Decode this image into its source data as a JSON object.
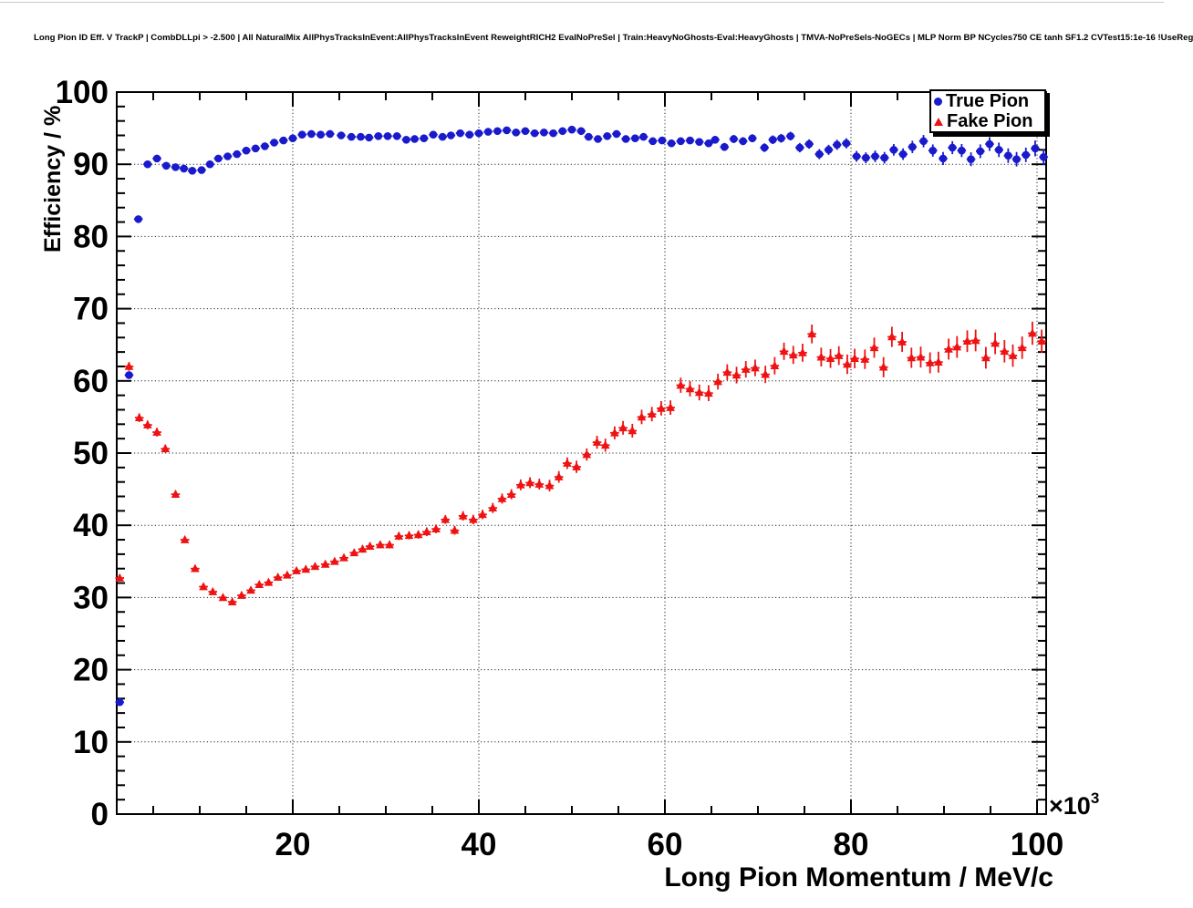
{
  "page": {
    "background": "#ffffff"
  },
  "header": {
    "title": "Long Pion ID Eff. V TrackP | CombDLLpi > -2.500 | All NaturalMix AllPhysTracksInEvent:AllPhysTracksInEvent ReweightRICH2 EvalNoPreSel | Train:HeavyNoGhosts-Eval:HeavyGhosts | TMVA-NoPreSels-NoGECs | MLP Norm BP NCycles750 CE tanh SF1.2 CVTest15:1e-16 !UseReg"
  },
  "chart_data": {
    "type": "scatter",
    "title": "Long Pion ID Eff. V TrackP | CombDLLpi > -2.500 | All NaturalMix AllPhysTracksInEvent:AllPhysTracksInEvent ReweightRICH2 EvalNoPreSel | Train:HeavyNoGhosts-Eval:HeavyGhosts | TMVA-NoPreSels-NoGECs | MLP Norm BP NCycles750 CE tanh SF1.2 CVTest15:1e-16 !UseReg",
    "xlabel": "Long Pion Momentum / MeV/c",
    "ylabel": "Efficiency / %",
    "x_unit_multiplier": {
      "base": "×10",
      "exponent": "3"
    },
    "xlim": [
      1.08,
      100.98
    ],
    "ylim": [
      0,
      100
    ],
    "x_major_ticks": [
      20,
      40,
      60,
      80,
      100
    ],
    "x_minor_tick_step": 5,
    "y_major_ticks": [
      0,
      10,
      20,
      30,
      40,
      50,
      60,
      70,
      80,
      90,
      100
    ],
    "y_minor_tick_step": 2,
    "grid": {
      "style": "dotted",
      "x_lines": [
        20,
        40,
        60,
        80,
        100
      ],
      "y_lines": [
        10,
        20,
        30,
        40,
        50,
        60,
        70,
        80,
        90
      ]
    },
    "x_error_half_width": 0.47,
    "legend": {
      "position": "top-right",
      "items": [
        {
          "label": "True Pion",
          "marker": "circle",
          "color": "#1a1acd"
        },
        {
          "label": "Fake Pion",
          "marker": "triangle",
          "color": "#ef1212"
        }
      ]
    },
    "series": [
      {
        "name": "True Pion",
        "marker": "circle",
        "color": "#1a1acd",
        "points": [
          [
            1.4,
            15.5,
            0.4
          ],
          [
            2.4,
            60.8,
            0.5
          ],
          [
            3.4,
            82.4,
            0.4
          ],
          [
            4.4,
            90.0,
            0.35
          ],
          [
            5.4,
            90.8,
            0.3
          ],
          [
            6.4,
            89.8,
            0.3
          ],
          [
            7.4,
            89.6,
            0.3
          ],
          [
            8.3,
            89.4,
            0.3
          ],
          [
            9.2,
            89.1,
            0.3
          ],
          [
            10.2,
            89.2,
            0.3
          ],
          [
            11.1,
            90.0,
            0.3
          ],
          [
            12.0,
            90.8,
            0.3
          ],
          [
            13.0,
            91.1,
            0.3
          ],
          [
            14.0,
            91.4,
            0.3
          ],
          [
            15.0,
            91.9,
            0.3
          ],
          [
            16.0,
            92.2,
            0.3
          ],
          [
            17.0,
            92.5,
            0.3
          ],
          [
            18.0,
            93.0,
            0.3
          ],
          [
            19.0,
            93.3,
            0.3
          ],
          [
            20.0,
            93.6,
            0.3
          ],
          [
            21.0,
            94.1,
            0.3
          ],
          [
            22.0,
            94.2,
            0.3
          ],
          [
            23.0,
            94.1,
            0.3
          ],
          [
            24.0,
            94.2,
            0.3
          ],
          [
            25.2,
            94.0,
            0.3
          ],
          [
            26.3,
            93.8,
            0.3
          ],
          [
            27.3,
            93.8,
            0.3
          ],
          [
            28.2,
            93.7,
            0.3
          ],
          [
            29.2,
            93.9,
            0.3
          ],
          [
            30.2,
            93.9,
            0.3
          ],
          [
            31.2,
            93.9,
            0.3
          ],
          [
            32.2,
            93.4,
            0.3
          ],
          [
            33.1,
            93.5,
            0.3
          ],
          [
            34.1,
            93.6,
            0.3
          ],
          [
            35.1,
            94.1,
            0.3
          ],
          [
            36.1,
            93.8,
            0.3
          ],
          [
            37.0,
            94.0,
            0.3
          ],
          [
            38.0,
            94.3,
            0.3
          ],
          [
            39.0,
            94.1,
            0.3
          ],
          [
            40.0,
            94.3,
            0.3
          ],
          [
            41.0,
            94.5,
            0.3
          ],
          [
            42.0,
            94.6,
            0.3
          ],
          [
            43.0,
            94.7,
            0.3
          ],
          [
            44.0,
            94.4,
            0.3
          ],
          [
            45.0,
            94.6,
            0.35
          ],
          [
            46.0,
            94.3,
            0.35
          ],
          [
            47.0,
            94.4,
            0.35
          ],
          [
            48.0,
            94.3,
            0.35
          ],
          [
            49.0,
            94.6,
            0.35
          ],
          [
            50.0,
            94.8,
            0.35
          ],
          [
            51.0,
            94.6,
            0.35
          ],
          [
            51.8,
            93.8,
            0.4
          ],
          [
            52.8,
            93.5,
            0.4
          ],
          [
            53.8,
            93.9,
            0.4
          ],
          [
            54.8,
            94.2,
            0.4
          ],
          [
            55.8,
            93.5,
            0.4
          ],
          [
            56.8,
            93.6,
            0.4
          ],
          [
            57.7,
            93.8,
            0.4
          ],
          [
            58.7,
            93.2,
            0.45
          ],
          [
            59.7,
            93.3,
            0.45
          ],
          [
            60.7,
            92.9,
            0.45
          ],
          [
            61.7,
            93.2,
            0.45
          ],
          [
            62.7,
            93.3,
            0.5
          ],
          [
            63.7,
            93.1,
            0.5
          ],
          [
            64.7,
            92.9,
            0.5
          ],
          [
            65.4,
            93.4,
            0.5
          ],
          [
            66.4,
            92.4,
            0.55
          ],
          [
            67.4,
            93.5,
            0.55
          ],
          [
            68.4,
            93.2,
            0.55
          ],
          [
            69.4,
            93.6,
            0.55
          ],
          [
            70.7,
            92.3,
            0.6
          ],
          [
            71.6,
            93.4,
            0.6
          ],
          [
            72.5,
            93.6,
            0.6
          ],
          [
            73.5,
            93.9,
            0.6
          ],
          [
            74.5,
            92.3,
            0.65
          ],
          [
            75.5,
            92.8,
            0.65
          ],
          [
            76.6,
            91.4,
            0.7
          ],
          [
            77.6,
            92.0,
            0.7
          ],
          [
            78.5,
            92.7,
            0.7
          ],
          [
            79.5,
            92.9,
            0.7
          ],
          [
            80.6,
            91.1,
            0.75
          ],
          [
            81.6,
            90.9,
            0.75
          ],
          [
            82.6,
            91.1,
            0.8
          ],
          [
            83.6,
            90.9,
            0.8
          ],
          [
            84.6,
            92.0,
            0.8
          ],
          [
            85.6,
            91.4,
            0.8
          ],
          [
            86.6,
            92.4,
            0.85
          ],
          [
            87.8,
            93.2,
            0.85
          ],
          [
            88.8,
            91.9,
            0.85
          ],
          [
            89.9,
            90.8,
            0.9
          ],
          [
            90.9,
            92.3,
            0.9
          ],
          [
            91.9,
            91.9,
            0.9
          ],
          [
            92.9,
            90.7,
            0.95
          ],
          [
            93.9,
            91.8,
            0.95
          ],
          [
            94.9,
            92.8,
            0.95
          ],
          [
            95.9,
            92.0,
            1.0
          ],
          [
            96.9,
            91.2,
            1.0
          ],
          [
            97.8,
            90.7,
            1.0
          ],
          [
            98.8,
            91.3,
            1.0
          ],
          [
            99.8,
            92.2,
            1.1
          ],
          [
            100.7,
            91.0,
            1.1
          ]
        ]
      },
      {
        "name": "Fake Pion",
        "marker": "triangle",
        "color": "#ef1212",
        "points": [
          [
            1.4,
            32.7,
            0.5
          ],
          [
            2.4,
            62.0,
            0.6
          ],
          [
            3.5,
            54.9,
            0.6
          ],
          [
            4.4,
            53.9,
            0.6
          ],
          [
            5.4,
            52.9,
            0.6
          ],
          [
            6.3,
            50.6,
            0.55
          ],
          [
            7.4,
            44.3,
            0.5
          ],
          [
            8.4,
            38.0,
            0.45
          ],
          [
            9.5,
            34.0,
            0.4
          ],
          [
            10.4,
            31.5,
            0.4
          ],
          [
            11.4,
            30.8,
            0.35
          ],
          [
            12.5,
            30.0,
            0.35
          ],
          [
            13.5,
            29.4,
            0.35
          ],
          [
            14.5,
            30.3,
            0.35
          ],
          [
            15.5,
            31.0,
            0.35
          ],
          [
            16.4,
            31.8,
            0.35
          ],
          [
            17.4,
            32.1,
            0.35
          ],
          [
            18.4,
            32.8,
            0.4
          ],
          [
            19.4,
            33.1,
            0.4
          ],
          [
            20.4,
            33.7,
            0.4
          ],
          [
            21.4,
            33.9,
            0.4
          ],
          [
            22.4,
            34.3,
            0.4
          ],
          [
            23.5,
            34.6,
            0.45
          ],
          [
            24.5,
            35.0,
            0.45
          ],
          [
            25.5,
            35.5,
            0.45
          ],
          [
            26.6,
            36.2,
            0.45
          ],
          [
            27.5,
            36.7,
            0.5
          ],
          [
            28.3,
            37.1,
            0.5
          ],
          [
            29.4,
            37.3,
            0.5
          ],
          [
            30.4,
            37.3,
            0.5
          ],
          [
            31.4,
            38.5,
            0.55
          ],
          [
            32.5,
            38.6,
            0.55
          ],
          [
            33.5,
            38.7,
            0.55
          ],
          [
            34.4,
            39.1,
            0.6
          ],
          [
            35.4,
            39.5,
            0.6
          ],
          [
            36.4,
            40.8,
            0.6
          ],
          [
            37.4,
            39.3,
            0.6
          ],
          [
            38.3,
            41.3,
            0.65
          ],
          [
            39.4,
            40.8,
            0.65
          ],
          [
            40.4,
            41.5,
            0.65
          ],
          [
            41.5,
            42.4,
            0.7
          ],
          [
            42.5,
            43.7,
            0.7
          ],
          [
            43.5,
            44.3,
            0.7
          ],
          [
            44.5,
            45.6,
            0.75
          ],
          [
            45.5,
            45.9,
            0.75
          ],
          [
            46.5,
            45.7,
            0.75
          ],
          [
            47.6,
            45.5,
            0.8
          ],
          [
            48.6,
            46.7,
            0.8
          ],
          [
            49.5,
            48.6,
            0.8
          ],
          [
            50.5,
            48.1,
            0.85
          ],
          [
            51.6,
            49.8,
            0.85
          ],
          [
            52.7,
            51.5,
            0.9
          ],
          [
            53.6,
            51.1,
            0.9
          ],
          [
            54.6,
            52.8,
            0.9
          ],
          [
            55.5,
            53.5,
            0.95
          ],
          [
            56.5,
            53.1,
            0.95
          ],
          [
            57.5,
            55.0,
            1.0
          ],
          [
            58.6,
            55.4,
            1.0
          ],
          [
            59.6,
            56.2,
            1.0
          ],
          [
            60.6,
            56.3,
            1.0
          ],
          [
            61.7,
            59.4,
            1.05
          ],
          [
            62.7,
            58.9,
            1.05
          ],
          [
            63.7,
            58.4,
            1.1
          ],
          [
            64.7,
            58.3,
            1.1
          ],
          [
            65.7,
            59.9,
            1.1
          ],
          [
            66.7,
            61.2,
            1.1
          ],
          [
            67.7,
            60.8,
            1.15
          ],
          [
            68.7,
            61.6,
            1.15
          ],
          [
            69.7,
            61.8,
            1.15
          ],
          [
            70.8,
            60.9,
            1.2
          ],
          [
            71.8,
            62.1,
            1.2
          ],
          [
            72.8,
            64.1,
            1.2
          ],
          [
            73.8,
            63.6,
            1.25
          ],
          [
            74.8,
            63.9,
            1.25
          ],
          [
            75.8,
            66.5,
            1.3
          ],
          [
            76.8,
            63.3,
            1.3
          ],
          [
            77.8,
            63.1,
            1.3
          ],
          [
            78.7,
            63.5,
            1.3
          ],
          [
            79.6,
            62.3,
            1.35
          ],
          [
            80.4,
            63.1,
            1.35
          ],
          [
            81.5,
            63.0,
            1.35
          ],
          [
            82.5,
            64.6,
            1.4
          ],
          [
            83.5,
            61.9,
            1.4
          ],
          [
            84.4,
            66.1,
            1.4
          ],
          [
            85.5,
            65.4,
            1.4
          ],
          [
            86.5,
            63.2,
            1.4
          ],
          [
            87.5,
            63.3,
            1.45
          ],
          [
            88.5,
            62.5,
            1.45
          ],
          [
            89.4,
            62.6,
            1.45
          ],
          [
            90.5,
            64.4,
            1.45
          ],
          [
            91.4,
            64.7,
            1.5
          ],
          [
            92.5,
            65.5,
            1.5
          ],
          [
            93.4,
            65.6,
            1.5
          ],
          [
            94.5,
            63.2,
            1.5
          ],
          [
            95.5,
            65.2,
            1.5
          ],
          [
            96.5,
            64.1,
            1.55
          ],
          [
            97.4,
            63.5,
            1.55
          ],
          [
            98.4,
            64.6,
            1.55
          ],
          [
            99.5,
            66.6,
            1.6
          ],
          [
            100.5,
            65.5,
            1.6
          ]
        ]
      }
    ]
  }
}
